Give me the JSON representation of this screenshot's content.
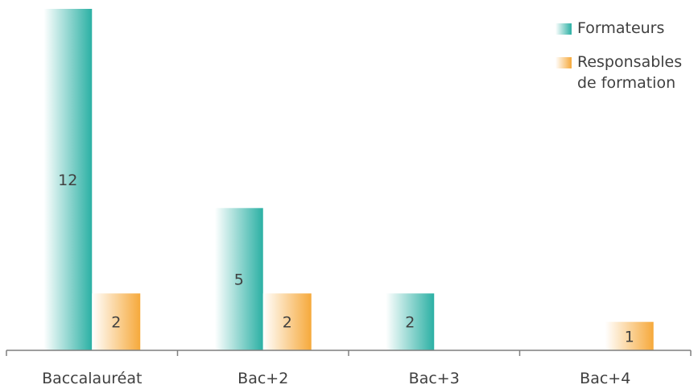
{
  "chart_data": {
    "type": "bar",
    "categories": [
      "Baccalauréat",
      "Bac+2",
      "Bac+3",
      "Bac+4"
    ],
    "series": [
      {
        "name": "Formateurs",
        "values": [
          12,
          5,
          2,
          null
        ],
        "color": "#2bb0a4"
      },
      {
        "name": "Responsables de formation",
        "values": [
          2,
          2,
          null,
          1
        ],
        "color": "#f6a93b"
      }
    ],
    "data_labels": true,
    "legend_position": "top-right",
    "grid": false,
    "ylim": [
      0,
      12
    ]
  },
  "legend": {
    "formateurs": "Formateurs",
    "responsables": "Responsables de formation"
  }
}
